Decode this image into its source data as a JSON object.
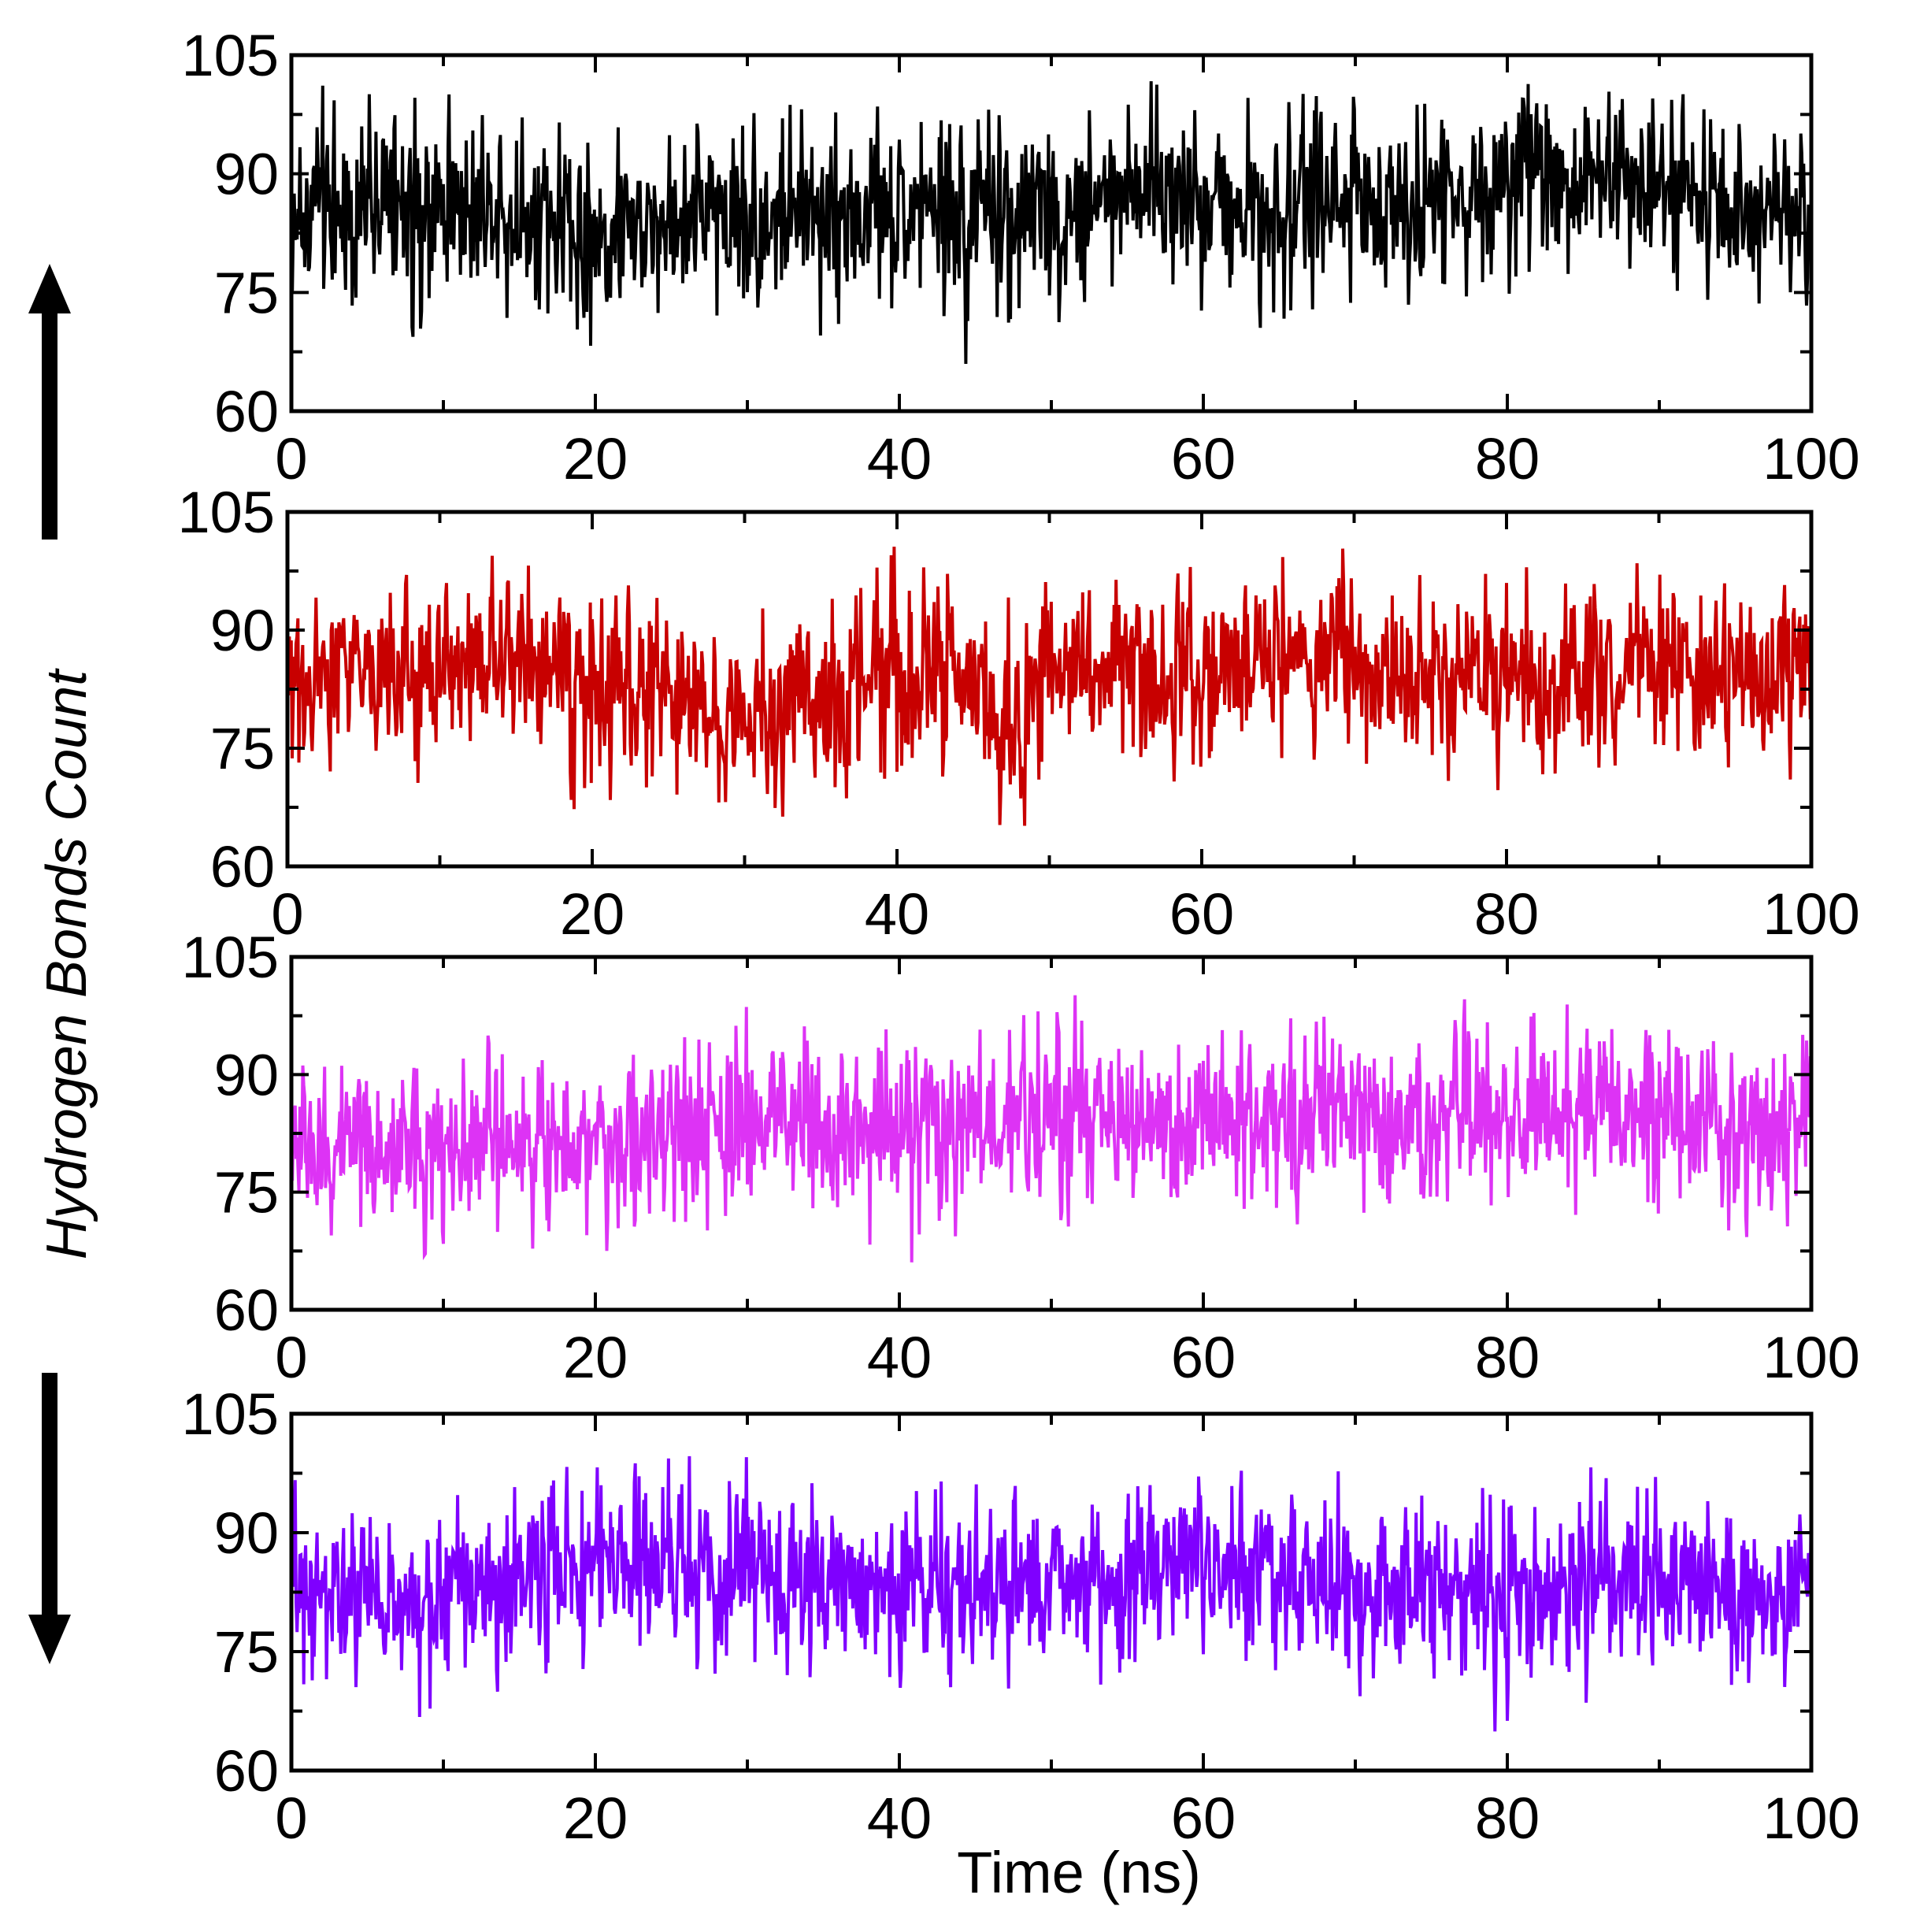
{
  "figure": {
    "ylabel": "Hydrogen Bonds Count",
    "xlabel": "Time (ns)"
  },
  "chart_data": [
    {
      "type": "line",
      "panel": 1,
      "title": "",
      "xlabel": "",
      "ylabel": "Hydrogen Bonds Count",
      "xlim": [
        0,
        100
      ],
      "ylim": [
        60,
        105
      ],
      "xticks": [
        "0",
        "20",
        "40",
        "60",
        "80",
        "100"
      ],
      "yticks": [
        "60",
        "75",
        "90",
        "105"
      ],
      "grid": false,
      "series": [
        {
          "color": "#000000",
          "x": [
            0,
            4,
            8,
            12,
            16,
            20,
            24,
            28,
            32,
            36,
            40,
            44,
            48,
            52,
            56,
            60,
            64,
            68,
            72,
            76,
            80,
            84,
            88,
            92,
            96,
            100
          ],
          "mean": [
            85,
            86,
            86,
            87,
            85,
            82,
            84,
            85,
            84,
            85,
            84,
            84,
            86,
            87,
            88,
            87,
            86,
            87,
            87,
            88,
            88,
            89,
            90,
            87,
            86,
            85
          ],
          "max": [
            102,
            101,
            102,
            104,
            100,
            97,
            99,
            100,
            99,
            101,
            100,
            101,
            101,
            102,
            104,
            103,
            102,
            103,
            102,
            102,
            101,
            102,
            103,
            101,
            100,
            99
          ],
          "min": [
            68,
            70,
            66,
            72,
            70,
            62,
            70,
            69,
            66,
            68,
            68,
            63,
            70,
            72,
            72,
            71,
            68,
            70,
            71,
            72,
            72,
            73,
            76,
            72,
            71,
            70
          ]
        }
      ]
    },
    {
      "type": "line",
      "panel": 2,
      "title": "",
      "xlabel": "",
      "ylabel": "",
      "xlim": [
        0,
        100
      ],
      "ylim": [
        60,
        105
      ],
      "xticks": [
        "0",
        "20",
        "40",
        "60",
        "80",
        "100"
      ],
      "yticks": [
        "60",
        "75",
        "90",
        "105"
      ],
      "grid": false,
      "series": [
        {
          "color": "#c80000",
          "x": [
            0,
            4,
            8,
            12,
            16,
            20,
            24,
            28,
            32,
            36,
            40,
            44,
            48,
            52,
            56,
            60,
            64,
            68,
            72,
            76,
            80,
            84,
            88,
            92,
            96,
            100
          ],
          "mean": [
            84,
            85,
            83,
            86,
            86,
            82,
            83,
            80,
            79,
            82,
            85,
            84,
            78,
            86,
            86,
            85,
            86,
            88,
            84,
            83,
            85,
            84,
            86,
            84,
            83,
            83
          ],
          "max": [
            99,
            98,
            99,
            103,
            101,
            97,
            97,
            94,
            95,
            97,
            104,
            99,
            97,
            100,
            101,
            100,
            101,
            104,
            99,
            98,
            100,
            99,
            101,
            99,
            98,
            96
          ],
          "min": [
            69,
            70,
            68,
            71,
            70,
            66,
            68,
            65,
            64,
            66,
            68,
            68,
            61,
            71,
            71,
            70,
            71,
            73,
            69,
            68,
            69,
            67,
            71,
            68,
            68,
            69
          ]
        }
      ]
    },
    {
      "type": "line",
      "panel": 3,
      "title": "",
      "xlabel": "",
      "ylabel": "",
      "xlim": [
        0,
        100
      ],
      "ylim": [
        60,
        105
      ],
      "xticks": [
        "0",
        "20",
        "40",
        "60",
        "80",
        "100"
      ],
      "yticks": [
        "60",
        "75",
        "90",
        "105"
      ],
      "grid": false,
      "series": [
        {
          "color": "#dd33f5",
          "x": [
            0,
            4,
            8,
            12,
            16,
            20,
            24,
            28,
            32,
            36,
            40,
            44,
            48,
            52,
            56,
            60,
            64,
            68,
            72,
            76,
            80,
            84,
            88,
            92,
            96,
            100
          ],
          "mean": [
            81,
            81,
            80,
            81,
            82,
            82,
            82,
            83,
            85,
            83,
            82,
            83,
            84,
            86,
            84,
            82,
            85,
            86,
            85,
            84,
            86,
            86,
            85,
            84,
            83,
            84
          ],
          "max": [
            97,
            94,
            95,
            96,
            97,
            97,
            96,
            99,
            103,
            98,
            97,
            99,
            100,
            104,
            99,
            97,
            100,
            101,
            100,
            99,
            101,
            102,
            100,
            99,
            98,
            98
          ],
          "min": [
            66,
            67,
            65,
            66,
            66,
            67,
            66,
            68,
            70,
            68,
            61,
            68,
            69,
            71,
            69,
            66,
            70,
            70,
            69,
            68,
            70,
            71,
            70,
            69,
            68,
            70
          ]
        }
      ]
    },
    {
      "type": "line",
      "panel": 4,
      "title": "",
      "xlabel": "Time (ns)",
      "ylabel": "",
      "xlim": [
        0,
        100
      ],
      "ylim": [
        60,
        105
      ],
      "xticks": [
        "0",
        "20",
        "40",
        "60",
        "80",
        "100"
      ],
      "yticks": [
        "60",
        "75",
        "90",
        "105"
      ],
      "grid": false,
      "series": [
        {
          "color": "#7f00ff",
          "x": [
            0,
            4,
            8,
            12,
            16,
            20,
            24,
            28,
            32,
            36,
            40,
            44,
            48,
            52,
            56,
            60,
            64,
            68,
            72,
            76,
            80,
            84,
            88,
            92,
            96,
            100
          ],
          "mean": [
            83,
            82,
            81,
            83,
            84,
            85,
            86,
            85,
            84,
            84,
            83,
            84,
            84,
            84,
            85,
            86,
            84,
            84,
            84,
            83,
            82,
            83,
            84,
            84,
            83,
            83
          ],
          "max": [
            98,
            97,
            96,
            98,
            99,
            100,
            104,
            100,
            99,
            98,
            97,
            99,
            99,
            99,
            100,
            101,
            99,
            99,
            99,
            98,
            97,
            98,
            99,
            99,
            98,
            97
          ],
          "min": [
            68,
            67,
            64,
            68,
            69,
            70,
            71,
            70,
            69,
            69,
            68,
            69,
            69,
            69,
            70,
            70,
            68,
            69,
            68,
            68,
            62,
            68,
            69,
            69,
            67,
            68
          ]
        }
      ]
    }
  ]
}
